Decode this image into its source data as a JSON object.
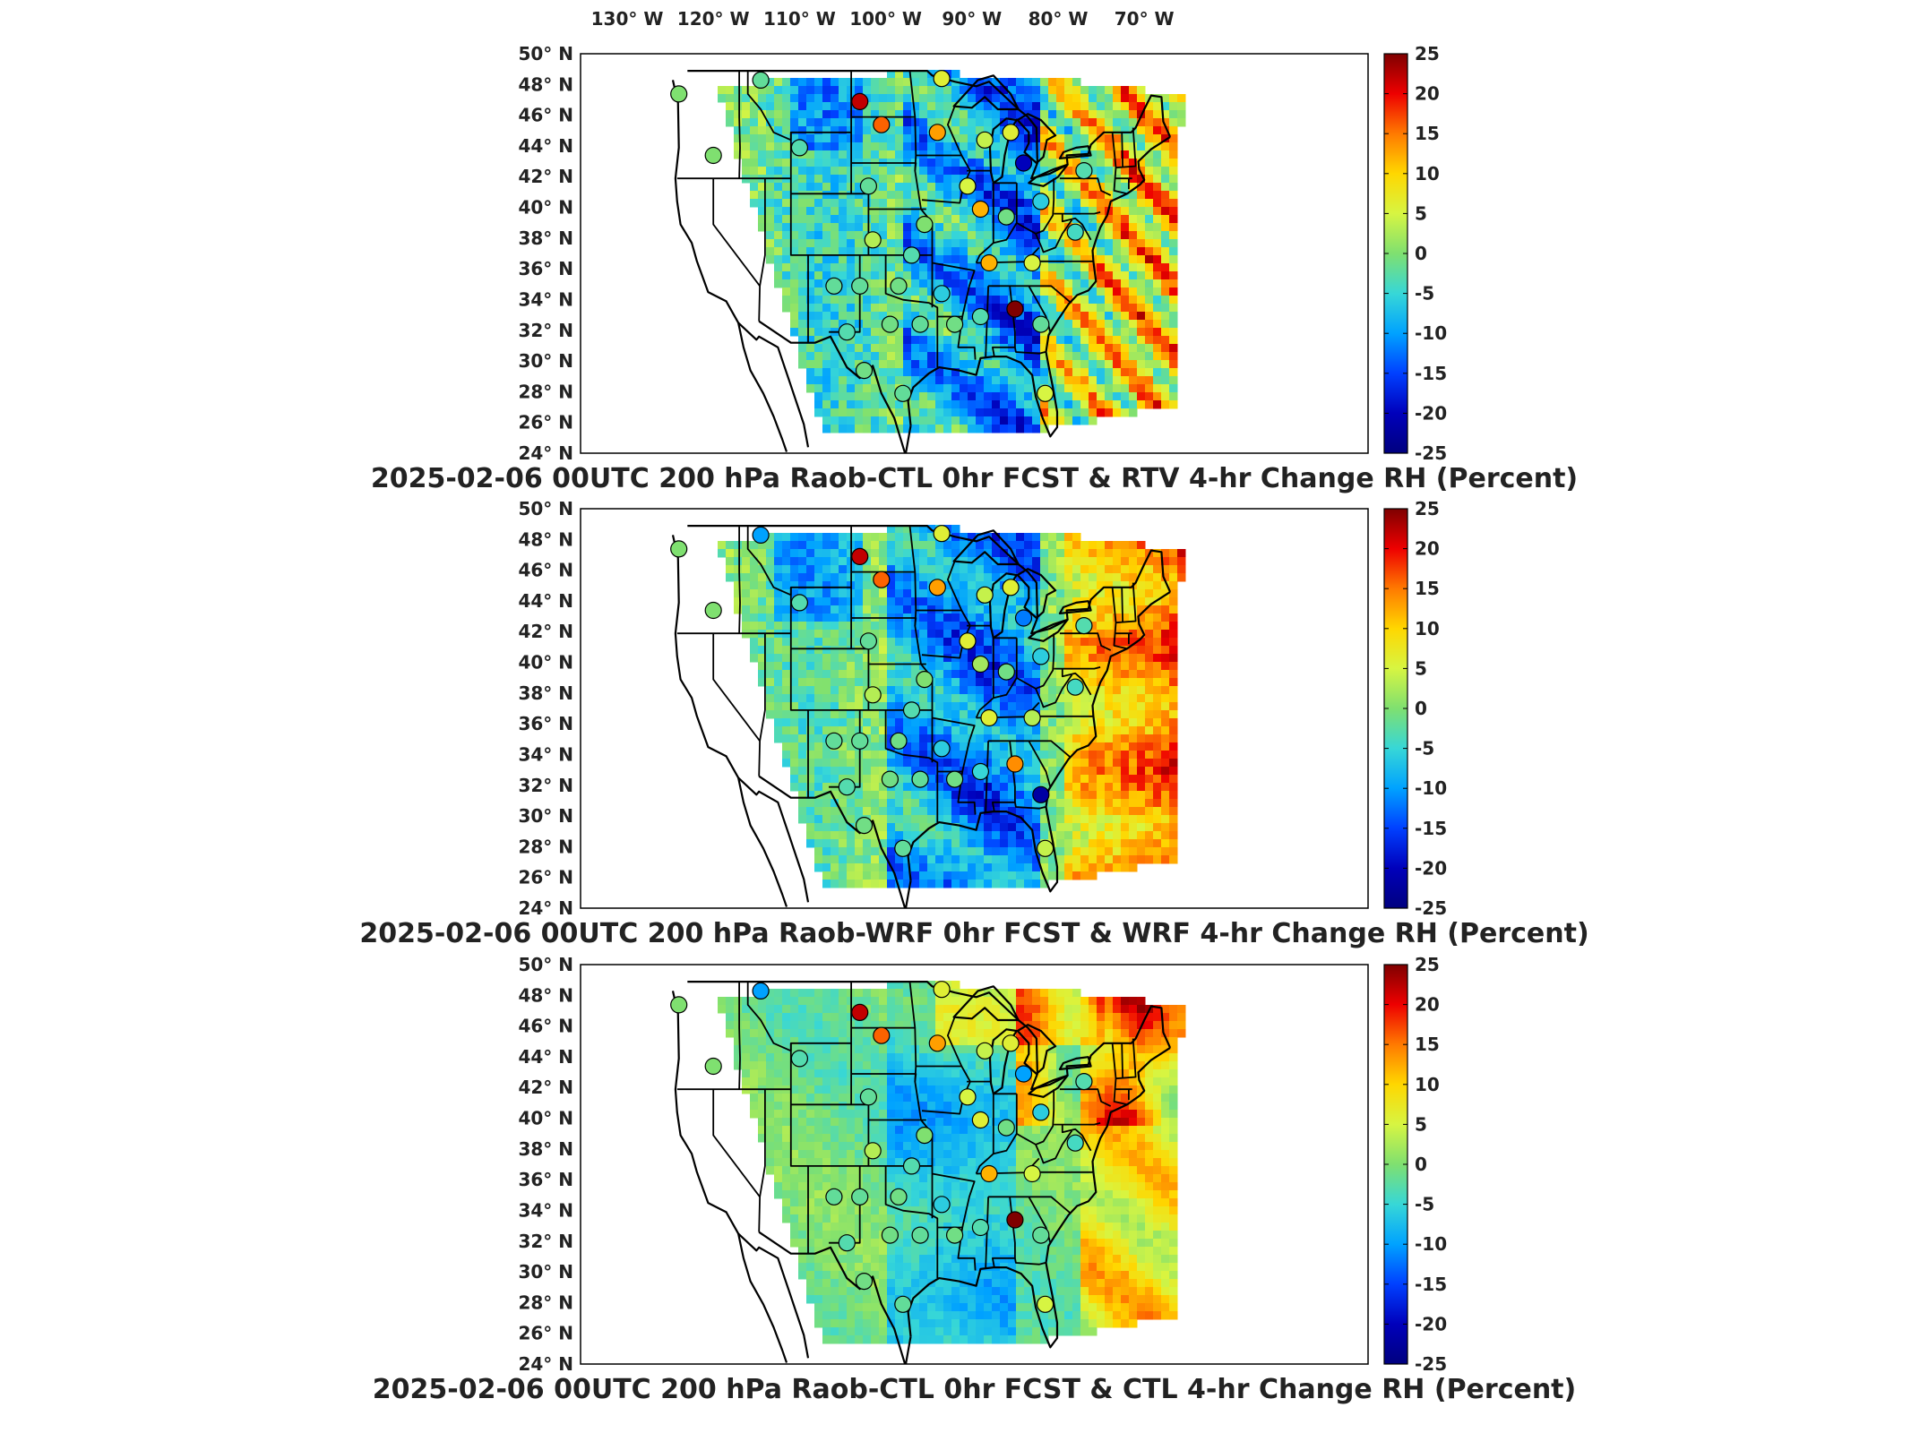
{
  "lon_labels": [
    "130° W",
    "120° W",
    "110° W",
    "100° W",
    "90° W",
    "80° W",
    "70° W"
  ],
  "lat_labels": [
    "50° N",
    "48° N",
    "46° N",
    "44° N",
    "42° N",
    "40° N",
    "38° N",
    "36° N",
    "34° N",
    "32° N",
    "30° N",
    "28° N",
    "26° N",
    "24° N"
  ],
  "colorbar_ticks": [
    "25",
    "20",
    "15",
    "10",
    "5",
    "0",
    "-5",
    "-10",
    "-15",
    "-20",
    "-25"
  ],
  "colorbar_stops": [
    "#7f0000",
    "#ee0000",
    "#ff7a00",
    "#ffd700",
    "#d7f542",
    "#7fe070",
    "#37d7d7",
    "#00a2ff",
    "#0040ff",
    "#0000bb",
    "#00007f"
  ],
  "panels": [
    {
      "title": "2025-02-06 00UTC 200 hPa Raob-CTL 0hr FCST & RTV 4-hr Change RH (Percent)",
      "field_style": "strong-mixed",
      "stations": [
        {
          "lon": -124,
          "lat": 47.5,
          "v": 0
        },
        {
          "lon": -114.5,
          "lat": 48.4,
          "v": -2
        },
        {
          "lon": -110,
          "lat": 44,
          "v": -3
        },
        {
          "lon": -120,
          "lat": 43.5,
          "v": 0
        },
        {
          "lon": -103,
          "lat": 47,
          "v": 22
        },
        {
          "lon": -100.5,
          "lat": 45.5,
          "v": 16
        },
        {
          "lon": -94,
          "lat": 45,
          "v": 13
        },
        {
          "lon": -93.5,
          "lat": 48.5,
          "v": 6
        },
        {
          "lon": -88.5,
          "lat": 44.5,
          "v": 4
        },
        {
          "lon": -85.5,
          "lat": 45,
          "v": 6
        },
        {
          "lon": -84,
          "lat": 43,
          "v": -20
        },
        {
          "lon": -90.5,
          "lat": 41.5,
          "v": 5
        },
        {
          "lon": -89,
          "lat": 40,
          "v": 12
        },
        {
          "lon": -86,
          "lat": 39.5,
          "v": -1
        },
        {
          "lon": -82,
          "lat": 40.5,
          "v": -6
        },
        {
          "lon": -102,
          "lat": 41.5,
          "v": -2
        },
        {
          "lon": -101.5,
          "lat": 38,
          "v": 3
        },
        {
          "lon": -95.5,
          "lat": 39,
          "v": 0
        },
        {
          "lon": -97,
          "lat": 37,
          "v": -3
        },
        {
          "lon": -106,
          "lat": 35,
          "v": -2
        },
        {
          "lon": -103,
          "lat": 35,
          "v": -2
        },
        {
          "lon": -98.5,
          "lat": 35,
          "v": -1
        },
        {
          "lon": -93.5,
          "lat": 34.5,
          "v": -6
        },
        {
          "lon": -88,
          "lat": 36.5,
          "v": 12
        },
        {
          "lon": -83,
          "lat": 36.5,
          "v": 5
        },
        {
          "lon": -85,
          "lat": 33.5,
          "v": 25
        },
        {
          "lon": -82,
          "lat": 32.5,
          "v": -2
        },
        {
          "lon": -104.5,
          "lat": 32,
          "v": -3
        },
        {
          "lon": -99.5,
          "lat": 32.5,
          "v": -1
        },
        {
          "lon": -96,
          "lat": 32.5,
          "v": -2
        },
        {
          "lon": -92,
          "lat": 32.5,
          "v": -1
        },
        {
          "lon": -89,
          "lat": 33,
          "v": -3
        },
        {
          "lon": -102.5,
          "lat": 29.5,
          "v": -1
        },
        {
          "lon": -98,
          "lat": 28,
          "v": -2
        },
        {
          "lon": -81.5,
          "lat": 28,
          "v": 5
        },
        {
          "lon": -77,
          "lat": 42.5,
          "v": -3
        },
        {
          "lon": -78,
          "lat": 38.5,
          "v": -4
        }
      ]
    },
    {
      "title": "2025-02-06 00UTC 200 hPa Raob-WRF 0hr FCST & WRF 4-hr Change RH (Percent)",
      "field_style": "wrf",
      "stations": [
        {
          "lon": -124,
          "lat": 47.5,
          "v": 0
        },
        {
          "lon": -114.5,
          "lat": 48.4,
          "v": -10
        },
        {
          "lon": -110,
          "lat": 44,
          "v": -3
        },
        {
          "lon": -120,
          "lat": 43.5,
          "v": 0
        },
        {
          "lon": -103,
          "lat": 47,
          "v": 22
        },
        {
          "lon": -100.5,
          "lat": 45.5,
          "v": 16
        },
        {
          "lon": -94,
          "lat": 45,
          "v": 13
        },
        {
          "lon": -93.5,
          "lat": 48.5,
          "v": 6
        },
        {
          "lon": -88.5,
          "lat": 44.5,
          "v": 4
        },
        {
          "lon": -85.5,
          "lat": 45,
          "v": 6
        },
        {
          "lon": -84,
          "lat": 43,
          "v": -12
        },
        {
          "lon": -90.5,
          "lat": 41.5,
          "v": 6
        },
        {
          "lon": -89,
          "lat": 40,
          "v": 2
        },
        {
          "lon": -86,
          "lat": 39.5,
          "v": -1
        },
        {
          "lon": -82,
          "lat": 40.5,
          "v": -6
        },
        {
          "lon": -102,
          "lat": 41.5,
          "v": -2
        },
        {
          "lon": -101.5,
          "lat": 38,
          "v": 3
        },
        {
          "lon": -95.5,
          "lat": 39,
          "v": 0
        },
        {
          "lon": -97,
          "lat": 37,
          "v": -3
        },
        {
          "lon": -106,
          "lat": 35,
          "v": -2
        },
        {
          "lon": -103,
          "lat": 35,
          "v": -2
        },
        {
          "lon": -98.5,
          "lat": 35,
          "v": -1
        },
        {
          "lon": -93.5,
          "lat": 34.5,
          "v": -6
        },
        {
          "lon": -88,
          "lat": 36.5,
          "v": 6
        },
        {
          "lon": -83,
          "lat": 36.5,
          "v": 3
        },
        {
          "lon": -85,
          "lat": 33.5,
          "v": 14
        },
        {
          "lon": -82,
          "lat": 31.5,
          "v": -22
        },
        {
          "lon": -104.5,
          "lat": 32,
          "v": -3
        },
        {
          "lon": -99.5,
          "lat": 32.5,
          "v": -1
        },
        {
          "lon": -96,
          "lat": 32.5,
          "v": -2
        },
        {
          "lon": -92,
          "lat": 32.5,
          "v": -1
        },
        {
          "lon": -89,
          "lat": 33,
          "v": -5
        },
        {
          "lon": -102.5,
          "lat": 29.5,
          "v": -1
        },
        {
          "lon": -98,
          "lat": 28,
          "v": -2
        },
        {
          "lon": -81.5,
          "lat": 28,
          "v": 4
        },
        {
          "lon": -77,
          "lat": 42.5,
          "v": -3
        },
        {
          "lon": -78,
          "lat": 38.5,
          "v": -4
        }
      ]
    },
    {
      "title": "2025-02-06 00UTC 200 hPa Raob-CTL 0hr FCST & CTL 4-hr Change RH (Percent)",
      "field_style": "smooth",
      "stations": [
        {
          "lon": -124,
          "lat": 47.5,
          "v": 0
        },
        {
          "lon": -114.5,
          "lat": 48.4,
          "v": -10
        },
        {
          "lon": -110,
          "lat": 44,
          "v": -3
        },
        {
          "lon": -120,
          "lat": 43.5,
          "v": 0
        },
        {
          "lon": -103,
          "lat": 47,
          "v": 22
        },
        {
          "lon": -100.5,
          "lat": 45.5,
          "v": 16
        },
        {
          "lon": -94,
          "lat": 45,
          "v": 13
        },
        {
          "lon": -93.5,
          "lat": 48.5,
          "v": 6
        },
        {
          "lon": -88.5,
          "lat": 44.5,
          "v": 4
        },
        {
          "lon": -85.5,
          "lat": 45,
          "v": 6
        },
        {
          "lon": -84,
          "lat": 43,
          "v": -10
        },
        {
          "lon": -90.5,
          "lat": 41.5,
          "v": 5
        },
        {
          "lon": -89,
          "lat": 40,
          "v": 6
        },
        {
          "lon": -86,
          "lat": 39.5,
          "v": -1
        },
        {
          "lon": -82,
          "lat": 40.5,
          "v": -6
        },
        {
          "lon": -102,
          "lat": 41.5,
          "v": -2
        },
        {
          "lon": -101.5,
          "lat": 38,
          "v": 3
        },
        {
          "lon": -95.5,
          "lat": 39,
          "v": 0
        },
        {
          "lon": -97,
          "lat": 37,
          "v": -3
        },
        {
          "lon": -106,
          "lat": 35,
          "v": -2
        },
        {
          "lon": -103,
          "lat": 35,
          "v": -2
        },
        {
          "lon": -98.5,
          "lat": 35,
          "v": -1
        },
        {
          "lon": -93.5,
          "lat": 34.5,
          "v": -6
        },
        {
          "lon": -88,
          "lat": 36.5,
          "v": 12
        },
        {
          "lon": -83,
          "lat": 36.5,
          "v": 5
        },
        {
          "lon": -85,
          "lat": 33.5,
          "v": 25
        },
        {
          "lon": -82,
          "lat": 32.5,
          "v": -2
        },
        {
          "lon": -104.5,
          "lat": 32,
          "v": -3
        },
        {
          "lon": -99.5,
          "lat": 32.5,
          "v": -1
        },
        {
          "lon": -96,
          "lat": 32.5,
          "v": -2
        },
        {
          "lon": -92,
          "lat": 32.5,
          "v": -1
        },
        {
          "lon": -89,
          "lat": 33,
          "v": -3
        },
        {
          "lon": -102.5,
          "lat": 29.5,
          "v": -1
        },
        {
          "lon": -98,
          "lat": 28,
          "v": -2
        },
        {
          "lon": -81.5,
          "lat": 28,
          "v": 5
        },
        {
          "lon": -77,
          "lat": 42.5,
          "v": -3
        },
        {
          "lon": -78,
          "lat": 38.5,
          "v": -4
        }
      ]
    }
  ]
}
